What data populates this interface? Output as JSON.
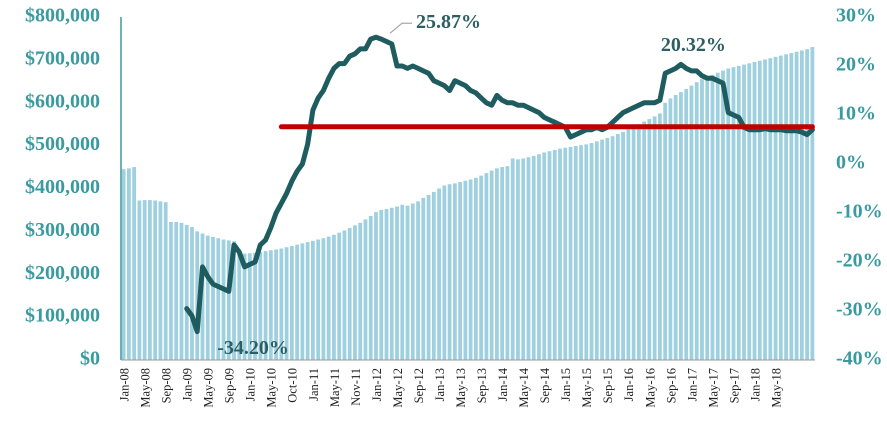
{
  "chart_data": {
    "type": "bar",
    "categories": [
      "Jan-08",
      null,
      null,
      null,
      "May-08",
      null,
      null,
      null,
      "Sep-08",
      null,
      null,
      null,
      "Jan-09",
      null,
      null,
      null,
      "May-09",
      null,
      null,
      null,
      "Sep-09",
      null,
      null,
      null,
      "Jan-10",
      null,
      null,
      null,
      "May-10",
      null,
      null,
      null,
      "Oct-10",
      null,
      null,
      null,
      "Jan-11",
      null,
      null,
      null,
      "May-11",
      null,
      null,
      null,
      "Nov-11",
      null,
      null,
      null,
      "Jan-12",
      null,
      null,
      null,
      "May-12",
      null,
      null,
      null,
      "Sep-12",
      null,
      null,
      null,
      "Jan-13",
      null,
      null,
      null,
      "May-13",
      null,
      null,
      null,
      "Sep-13",
      null,
      null,
      null,
      "Jan-14",
      null,
      null,
      null,
      "May-14",
      null,
      null,
      null,
      "Sep-14",
      null,
      null,
      null,
      "Jan-15",
      null,
      null,
      null,
      "May-15",
      null,
      null,
      null,
      "Sep-15",
      null,
      null,
      null,
      "Jan-16",
      null,
      null,
      null,
      "May-16",
      null,
      null,
      null,
      "Sep-16",
      null,
      null,
      null,
      "Jan-17",
      null,
      null,
      null,
      "May-17",
      null,
      null,
      null,
      "Sep-17",
      null,
      null,
      null,
      "Jan-18",
      null,
      null,
      null,
      "May-18",
      null,
      null,
      null,
      null,
      null,
      null,
      null
    ],
    "series": [
      {
        "type": "bar",
        "color": "#9fd0e0",
        "values": [
          445000,
          447000,
          450000,
          372000,
          373000,
          373000,
          372000,
          370000,
          368000,
          322000,
          322000,
          320000,
          315000,
          310000,
          300000,
          295000,
          290000,
          287000,
          284000,
          281000,
          279000,
          277000,
          248000,
          248000,
          249000,
          250000,
          252000,
          254000,
          256000,
          258000,
          260000,
          263000,
          266000,
          269000,
          272000,
          275000,
          278000,
          281000,
          284000,
          288000,
          292000,
          297000,
          302000,
          308000,
          314000,
          320000,
          328000,
          336000,
          345000,
          350000,
          352000,
          355000,
          358000,
          362000,
          360000,
          365000,
          370000,
          378000,
          385000,
          392000,
          400000,
          407000,
          410000,
          412000,
          415000,
          418000,
          421000,
          425000,
          430000,
          436000,
          442000,
          447000,
          450000,
          452000,
          470000,
          468000,
          470000,
          473000,
          476000,
          480000,
          484000,
          487000,
          490000,
          493000,
          495000,
          497000,
          499000,
          501000,
          503000,
          506000,
          510000,
          514000,
          518000,
          522000,
          527000,
          532000,
          538000,
          544000,
          550000,
          556000,
          562000,
          568000,
          575000,
          600000,
          610000,
          618000,
          625000,
          632000,
          640000,
          648000,
          655000,
          660000,
          665000,
          670000,
          675000,
          680000,
          683000,
          686000,
          689000,
          692000,
          695000,
          698000,
          701000,
          704000,
          707000,
          710000,
          713000,
          716000,
          719000,
          722000,
          725000,
          730000
        ]
      },
      {
        "type": "line",
        "axis": "y2",
        "color": "#1e5c60",
        "values": [
          null,
          null,
          null,
          null,
          null,
          null,
          null,
          null,
          null,
          null,
          null,
          null,
          -29.5,
          -31,
          -34.2,
          -21,
          -23,
          -24.5,
          -25,
          -25.5,
          -26,
          -16.5,
          -18,
          -21,
          -20.5,
          -20,
          -16.5,
          -15.5,
          -13,
          -10,
          -8,
          -6,
          -3.5,
          -1.5,
          0,
          4,
          11,
          13.5,
          15,
          17.5,
          19.5,
          20.5,
          20.5,
          22,
          22.5,
          23.5,
          23.5,
          25.5,
          25.87,
          25.5,
          25,
          24.5,
          20,
          20,
          19.5,
          20,
          19.5,
          19,
          18.5,
          17,
          16.5,
          16,
          15,
          17,
          16.5,
          16,
          15,
          14.5,
          13.5,
          12.5,
          12,
          14,
          13,
          12.5,
          12.5,
          12,
          12,
          11.5,
          11,
          10.5,
          9.5,
          9,
          8.5,
          8,
          7.5,
          5.5,
          6,
          6.5,
          7,
          7,
          7.5,
          7,
          7.5,
          8.5,
          9.5,
          10.5,
          11,
          11.5,
          12,
          12.5,
          12.5,
          12.5,
          13,
          18.5,
          19,
          19.5,
          20.32,
          19.5,
          19,
          19,
          18,
          17.5,
          17.5,
          17,
          16.5,
          10.5,
          10,
          9.5,
          7.5,
          7,
          7,
          7,
          7.2,
          7,
          7,
          7,
          6.8,
          6.8,
          6.8,
          6.5,
          6,
          7
        ]
      },
      {
        "type": "line",
        "axis": "y2",
        "color": "#c00000",
        "values": [
          null,
          null,
          null,
          null,
          null,
          null,
          null,
          null,
          null,
          null,
          null,
          null,
          null,
          null,
          null,
          null,
          null,
          null,
          null,
          null,
          null,
          null,
          null,
          null,
          null,
          null,
          null,
          null,
          null,
          null,
          7.6,
          7.6,
          7.6,
          7.6,
          7.6,
          7.6,
          7.6,
          7.6,
          7.6,
          7.6,
          7.6,
          7.6,
          7.6,
          7.6,
          7.6,
          7.6,
          7.6,
          7.6,
          7.6,
          7.6,
          7.6,
          7.6,
          7.6,
          7.6,
          7.6,
          7.6,
          7.6,
          7.6,
          7.6,
          7.6,
          7.6,
          7.6,
          7.6,
          7.6,
          7.6,
          7.6,
          7.6,
          7.6,
          7.6,
          7.6,
          7.6,
          7.6,
          7.6,
          7.6,
          7.6,
          7.6,
          7.6,
          7.6,
          7.6,
          7.6,
          7.6,
          7.6,
          7.6,
          7.6,
          7.6,
          7.6,
          7.6,
          7.6,
          7.6,
          7.6,
          7.6,
          7.6,
          7.6,
          7.6,
          7.6,
          7.6,
          7.6,
          7.6,
          7.6,
          7.6,
          7.6,
          7.6,
          7.6,
          7.6,
          7.6,
          7.6,
          7.6,
          7.6,
          7.6,
          7.6,
          7.6,
          7.6,
          7.6,
          7.6,
          7.6,
          7.6,
          7.6,
          7.6,
          7.6,
          7.6,
          7.6,
          7.6,
          7.6,
          7.6,
          7.6,
          7.6,
          7.6,
          7.6,
          7.6,
          7.6,
          7.6,
          7.6
        ]
      }
    ],
    "annotations": [
      {
        "label": "25.87%",
        "value": 25.87
      },
      {
        "label": "-34.20%",
        "value": -34.2
      },
      {
        "label": "20.32%",
        "value": 20.32
      }
    ],
    "ylim": [
      0,
      800000
    ],
    "yticks": [
      {
        "value": 0,
        "label": "$0"
      },
      {
        "value": 100000,
        "label": "$100,000"
      },
      {
        "value": 200000,
        "label": "$200,000"
      },
      {
        "value": 300000,
        "label": "$300,000"
      },
      {
        "value": 400000,
        "label": "$400,000"
      },
      {
        "value": 500000,
        "label": "$500,000"
      },
      {
        "value": 600000,
        "label": "$600,000"
      },
      {
        "value": 700000,
        "label": "$700,000"
      },
      {
        "value": 800000,
        "label": "$800,000"
      }
    ],
    "y2lim": [
      -40,
      30
    ],
    "y2ticks": [
      {
        "value": -40,
        "label": "-40%"
      },
      {
        "value": -30,
        "label": "-30%"
      },
      {
        "value": -20,
        "label": "-20%"
      },
      {
        "value": -10,
        "label": "-10%"
      },
      {
        "value": 0,
        "label": "0%"
      },
      {
        "value": 10,
        "label": "10%"
      },
      {
        "value": 20,
        "label": "20%"
      },
      {
        "value": 30,
        "label": "30%"
      }
    ],
    "grid": false
  }
}
